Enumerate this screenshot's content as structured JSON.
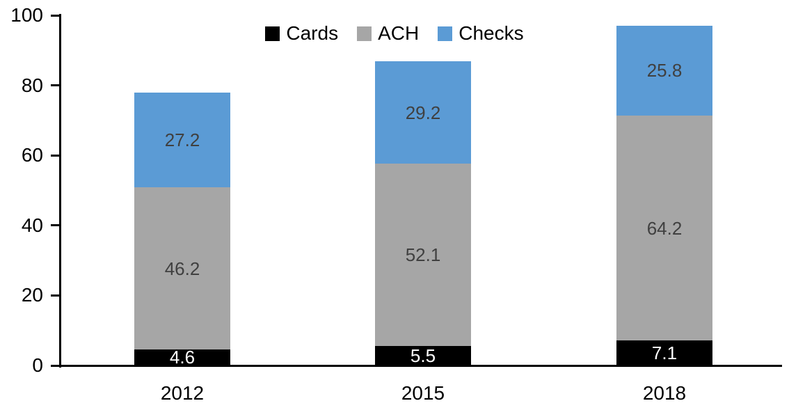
{
  "chart_data": {
    "type": "bar",
    "stacked": true,
    "title": "",
    "xlabel": "",
    "ylabel": "",
    "categories": [
      "2012",
      "2015",
      "2018"
    ],
    "series": [
      {
        "name": "Cards",
        "color": "#000000",
        "label_color": "#ffffff",
        "values": [
          4.6,
          5.5,
          7.1
        ]
      },
      {
        "name": "ACH",
        "color": "#a6a6a6",
        "label_color": "#404040",
        "values": [
          46.2,
          52.1,
          64.2
        ]
      },
      {
        "name": "Checks",
        "color": "#5b9bd5",
        "label_color": "#404040",
        "values": [
          27.2,
          29.2,
          25.8
        ]
      }
    ],
    "ylim": [
      0,
      100
    ],
    "yticks": [
      0,
      20,
      40,
      60,
      80,
      100
    ],
    "legend_position": "top",
    "grid": false,
    "axis_color": "#000000",
    "background_color": "#ffffff"
  }
}
